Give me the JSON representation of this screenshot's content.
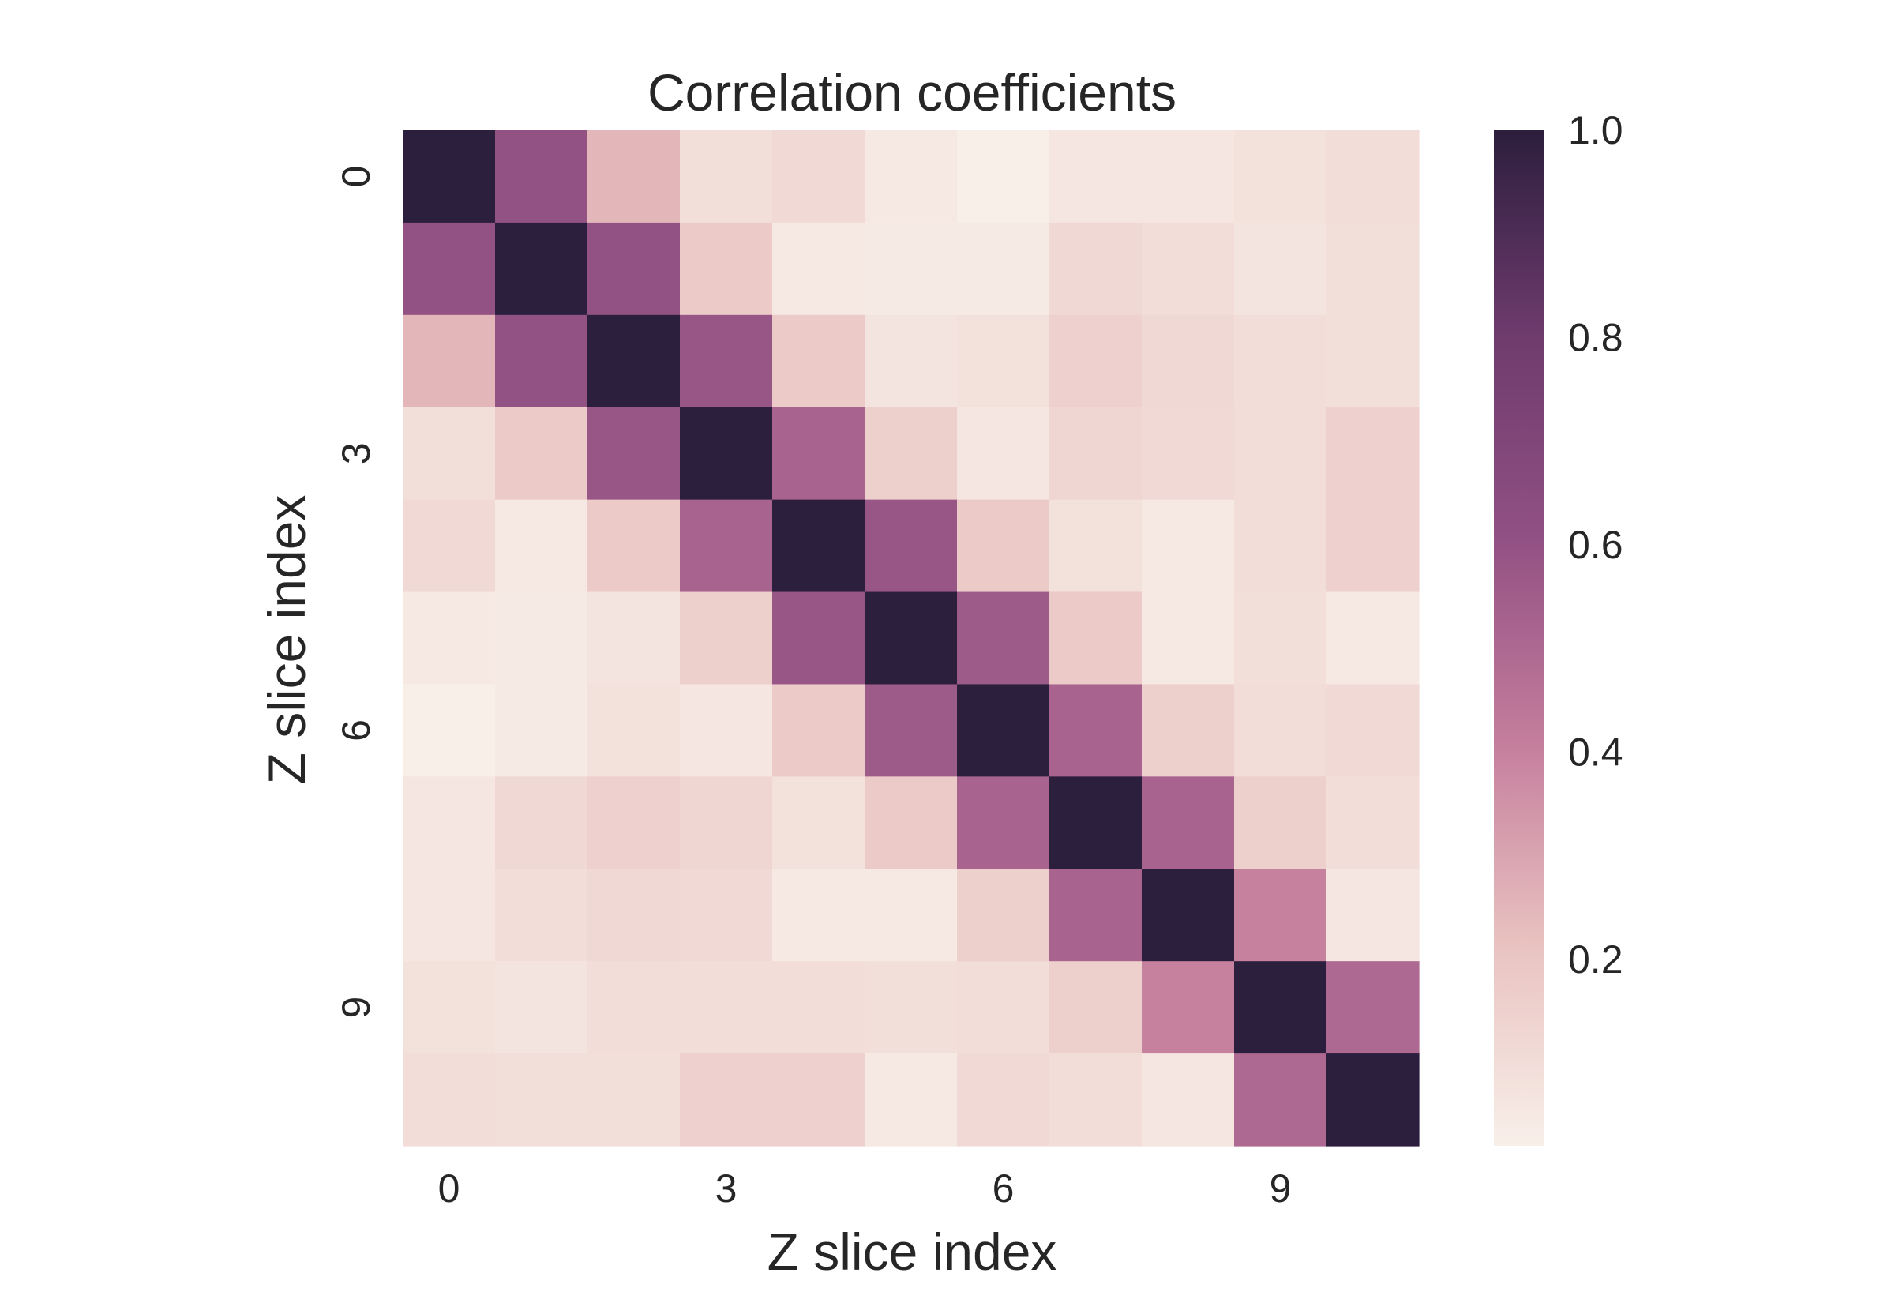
{
  "chart_data": {
    "type": "heatmap",
    "title": "Correlation coefficients",
    "xlabel": "Z slice index",
    "ylabel": "Z slice index",
    "x_ticks": [
      0,
      3,
      6,
      9
    ],
    "y_ticks": [
      0,
      3,
      6,
      9
    ],
    "size": 11,
    "matrix": [
      [
        1.0,
        0.6,
        0.25,
        0.09,
        0.11,
        0.05,
        0.02,
        0.06,
        0.06,
        0.08,
        0.1
      ],
      [
        0.6,
        1.0,
        0.6,
        0.18,
        0.05,
        0.04,
        0.04,
        0.12,
        0.1,
        0.07,
        0.09
      ],
      [
        0.25,
        0.6,
        1.0,
        0.58,
        0.18,
        0.07,
        0.08,
        0.15,
        0.12,
        0.1,
        0.09
      ],
      [
        0.09,
        0.18,
        0.58,
        1.0,
        0.52,
        0.16,
        0.06,
        0.13,
        0.11,
        0.1,
        0.15
      ],
      [
        0.11,
        0.05,
        0.18,
        0.52,
        1.0,
        0.58,
        0.18,
        0.08,
        0.05,
        0.1,
        0.15
      ],
      [
        0.05,
        0.04,
        0.07,
        0.16,
        0.58,
        1.0,
        0.56,
        0.18,
        0.05,
        0.09,
        0.05
      ],
      [
        0.02,
        0.04,
        0.08,
        0.06,
        0.18,
        0.56,
        1.0,
        0.52,
        0.16,
        0.1,
        0.11
      ],
      [
        0.06,
        0.12,
        0.15,
        0.13,
        0.08,
        0.18,
        0.52,
        1.0,
        0.52,
        0.16,
        0.1
      ],
      [
        0.06,
        0.1,
        0.12,
        0.11,
        0.05,
        0.05,
        0.16,
        0.52,
        1.0,
        0.4,
        0.06
      ],
      [
        0.08,
        0.07,
        0.1,
        0.1,
        0.1,
        0.09,
        0.1,
        0.16,
        0.4,
        1.0,
        0.5
      ],
      [
        0.1,
        0.09,
        0.09,
        0.15,
        0.15,
        0.05,
        0.11,
        0.1,
        0.06,
        0.5,
        1.0
      ]
    ],
    "colorbar": {
      "min": 0.02,
      "max": 1.0,
      "ticks": [
        "1.0",
        "0.8",
        "0.6",
        "0.4",
        "0.2"
      ],
      "tick_values": [
        1.0,
        0.8,
        0.6,
        0.4,
        0.2
      ]
    },
    "colormap": [
      "#f8efe9",
      "#e9c2c0",
      "#c47d9c",
      "#915083",
      "#6e3b6d",
      "#2c1e3d"
    ],
    "grid": false
  }
}
